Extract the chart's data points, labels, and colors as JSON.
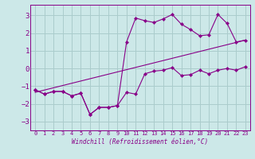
{
  "xlabel": "Windchill (Refroidissement éolien,°C)",
  "background_color": "#cce8e8",
  "grid_color": "#aacccc",
  "line_color": "#880088",
  "spine_color": "#880088",
  "xlim": [
    -0.5,
    23.5
  ],
  "ylim": [
    -3.5,
    3.6
  ],
  "xticks": [
    0,
    1,
    2,
    3,
    4,
    5,
    6,
    7,
    8,
    9,
    10,
    11,
    12,
    13,
    14,
    15,
    16,
    17,
    18,
    19,
    20,
    21,
    22,
    23
  ],
  "yticks": [
    -3,
    -2,
    -1,
    0,
    1,
    2,
    3
  ],
  "series_lower_x": [
    0,
    1,
    2,
    3,
    4,
    5,
    6,
    7,
    8,
    9,
    10,
    11,
    12,
    13,
    14,
    15,
    16,
    17,
    18,
    19,
    20,
    21,
    22,
    23
  ],
  "series_lower_y": [
    -1.2,
    -1.45,
    -1.3,
    -1.3,
    -1.55,
    -1.4,
    -2.6,
    -2.2,
    -2.2,
    -2.1,
    -1.35,
    -1.45,
    -0.3,
    -0.15,
    -0.1,
    0.05,
    -0.4,
    -0.35,
    -0.1,
    -0.3,
    -0.1,
    0.0,
    -0.1,
    0.1
  ],
  "series_upper_x": [
    0,
    1,
    2,
    3,
    4,
    5,
    6,
    7,
    8,
    9,
    10,
    11,
    12,
    13,
    14,
    15,
    16,
    17,
    18,
    19,
    20,
    21,
    22,
    23
  ],
  "series_upper_y": [
    -1.2,
    -1.45,
    -1.3,
    -1.3,
    -1.55,
    -1.4,
    -2.6,
    -2.2,
    -2.2,
    -2.1,
    1.5,
    2.85,
    2.7,
    2.6,
    2.8,
    3.05,
    2.5,
    2.2,
    1.85,
    1.9,
    3.05,
    2.55,
    1.5,
    1.6
  ],
  "trend_x": [
    0,
    23
  ],
  "trend_y": [
    -1.35,
    1.6
  ]
}
